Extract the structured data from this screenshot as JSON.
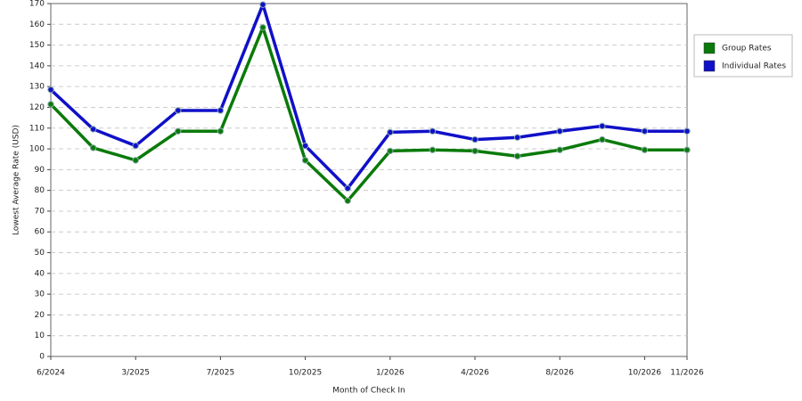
{
  "chart_data": {
    "type": "line",
    "x_label": "Month of Check In",
    "y_label": "Lowest Average Rate (USD)",
    "categories": [
      "6/2024",
      null,
      "3/2025",
      null,
      "7/2025",
      null,
      "10/2025",
      null,
      "1/2026",
      null,
      "4/2026",
      null,
      "8/2026",
      null,
      "10/2026",
      "11/2026"
    ],
    "series": [
      {
        "name": "Group Rates",
        "color": "#0a7a0a",
        "values": [
          121.5,
          100.5,
          94.5,
          108.5,
          108.5,
          158.5,
          94.5,
          75,
          99,
          99.5,
          99,
          96.5,
          99.5,
          104.5,
          99.5,
          99.5
        ]
      },
      {
        "name": "Individual Rates",
        "color": "#1010c8",
        "values": [
          128.5,
          109.5,
          101.5,
          118.5,
          118.5,
          169.5,
          101.5,
          81,
          108,
          108.5,
          104.5,
          105.5,
          108.5,
          111,
          108.5,
          108.5
        ]
      }
    ],
    "ylim": [
      0,
      170
    ],
    "yticks": [
      0,
      10,
      20,
      30,
      40,
      50,
      60,
      70,
      80,
      90,
      100,
      110,
      120,
      130,
      140,
      150,
      160,
      170
    ],
    "grid": true,
    "legend": "right"
  }
}
